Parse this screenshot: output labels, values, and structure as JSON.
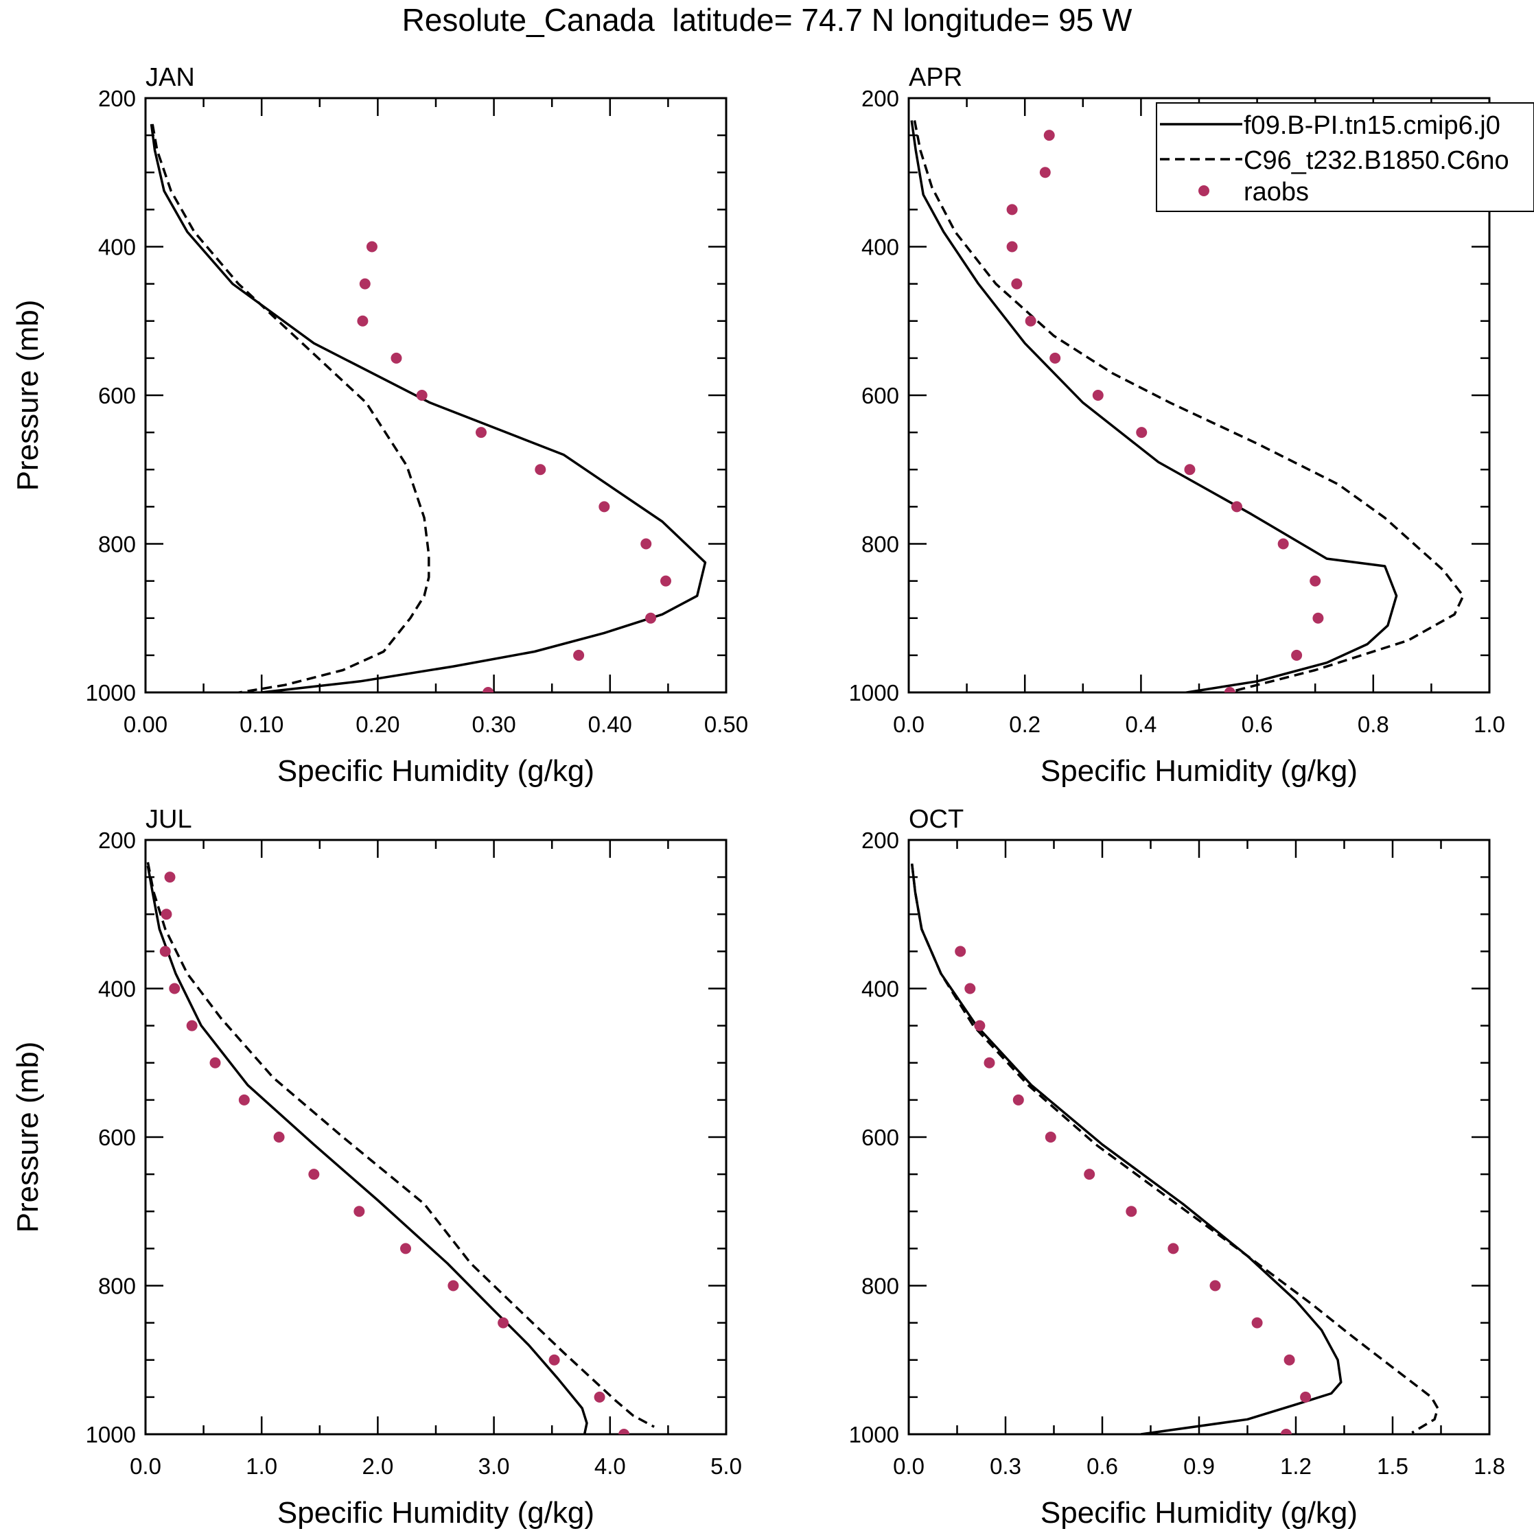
{
  "figure": {
    "title": "Resolute_Canada  latitude= 74.7 N longitude= 95 W"
  },
  "legend": {
    "entries": [
      {
        "label": "f09.B-PI.tn15.cmip6.j0",
        "style": "solid"
      },
      {
        "label": "C96_t232.B1850.C6no",
        "style": "dashed"
      },
      {
        "label": "raobs",
        "style": "marker"
      }
    ],
    "placement": "top-right of APR panel"
  },
  "colors": {
    "raobs": "#b03060",
    "lines": "#000000"
  },
  "chart_data": [
    {
      "type": "line",
      "panel": "JAN",
      "title": "JAN",
      "xlabel": "Specific Humidity (g/kg)",
      "ylabel": "Pressure (mb)",
      "xlim": [
        0,
        0.5
      ],
      "ylim": [
        1000,
        200
      ],
      "xticks": [
        0,
        0.1,
        0.2,
        0.3,
        0.4,
        0.5
      ],
      "xticklabels": [
        "0.00",
        "0.10",
        "0.20",
        "0.30",
        "0.40",
        "0.50"
      ],
      "yticks": [
        200,
        400,
        600,
        800,
        1000
      ],
      "yticklabels": [
        "200",
        "400",
        "600",
        "800",
        "1000"
      ],
      "series": [
        {
          "name": "f09.B-PI.tn15.cmip6.j0",
          "style": "solid",
          "x": [
            0.005,
            0.008,
            0.016,
            0.036,
            0.075,
            0.145,
            0.245,
            0.36,
            0.445,
            0.482,
            0.475,
            0.445,
            0.395,
            0.335,
            0.265,
            0.185,
            0.1
          ],
          "y": [
            235,
            270,
            325,
            380,
            450,
            530,
            610,
            680,
            770,
            825,
            870,
            895,
            920,
            945,
            965,
            985,
            1000
          ]
        },
        {
          "name": "C96_t232.B1850.C6no",
          "style": "dashed",
          "x": [
            0.006,
            0.01,
            0.022,
            0.042,
            0.08,
            0.135,
            0.19,
            0.225,
            0.24,
            0.244,
            0.244,
            0.24,
            0.228,
            0.205,
            0.17,
            0.12,
            0.073
          ],
          "y": [
            235,
            270,
            325,
            380,
            450,
            530,
            610,
            695,
            765,
            815,
            845,
            870,
            900,
            945,
            970,
            990,
            1002
          ]
        },
        {
          "name": "raobs",
          "style": "marker",
          "x": [
            0.195,
            0.189,
            0.187,
            0.216,
            0.238,
            0.289,
            0.34,
            0.395,
            0.431,
            0.448,
            0.435,
            0.373,
            0.295
          ],
          "y": [
            400,
            450,
            500,
            550,
            600,
            650,
            700,
            750,
            800,
            850,
            900,
            950,
            1000
          ]
        }
      ]
    },
    {
      "type": "line",
      "panel": "APR",
      "title": "APR",
      "xlabel": "Specific Humidity (g/kg)",
      "ylabel": "",
      "xlim": [
        0,
        1.0
      ],
      "ylim": [
        1000,
        200
      ],
      "xticks": [
        0,
        0.2,
        0.4,
        0.6,
        0.8,
        1.0
      ],
      "xticklabels": [
        "0.0",
        "0.2",
        "0.4",
        "0.6",
        "0.8",
        "1.0"
      ],
      "yticks": [
        200,
        400,
        600,
        800,
        1000
      ],
      "yticklabels": [
        "200",
        "400",
        "600",
        "800",
        "1000"
      ],
      "series": [
        {
          "name": "f09.B-PI.tn15.cmip6.j0",
          "style": "solid",
          "x": [
            0.005,
            0.012,
            0.025,
            0.06,
            0.12,
            0.2,
            0.3,
            0.43,
            0.59,
            0.72,
            0.82,
            0.84,
            0.825,
            0.79,
            0.72,
            0.6,
            0.43
          ],
          "y": [
            230,
            270,
            330,
            380,
            450,
            530,
            610,
            690,
            760,
            820,
            830,
            870,
            910,
            935,
            960,
            985,
            1006
          ]
        },
        {
          "name": "C96_t232.B1850.C6no",
          "style": "dashed",
          "x": [
            0.01,
            0.02,
            0.04,
            0.08,
            0.15,
            0.25,
            0.35,
            0.45,
            0.6,
            0.74,
            0.82,
            0.92,
            0.955,
            0.94,
            0.86,
            0.7,
            0.54
          ],
          "y": [
            230,
            270,
            320,
            380,
            450,
            520,
            570,
            610,
            665,
            720,
            765,
            835,
            870,
            895,
            930,
            970,
            1002
          ]
        },
        {
          "name": "raobs",
          "style": "marker",
          "x": [
            0.242,
            0.235,
            0.178,
            0.178,
            0.186,
            0.21,
            0.252,
            0.326,
            0.401,
            0.484,
            0.565,
            0.645,
            0.7,
            0.705,
            0.668,
            0.553
          ],
          "y": [
            250,
            300,
            350,
            400,
            450,
            500,
            550,
            600,
            650,
            700,
            750,
            800,
            850,
            900,
            950,
            1000
          ]
        }
      ]
    },
    {
      "type": "line",
      "panel": "JUL",
      "title": "JUL",
      "xlabel": "Specific Humidity (g/kg)",
      "ylabel": "Pressure (mb)",
      "xlim": [
        0,
        5.0
      ],
      "ylim": [
        1000,
        200
      ],
      "xticks": [
        0,
        1,
        2,
        3,
        4,
        5
      ],
      "xticklabels": [
        "0.0",
        "1.0",
        "2.0",
        "3.0",
        "4.0",
        "5.0"
      ],
      "yticks": [
        200,
        400,
        600,
        800,
        1000
      ],
      "yticklabels": [
        "200",
        "400",
        "600",
        "800",
        "1000"
      ],
      "series": [
        {
          "name": "f09.B-PI.tn15.cmip6.j0",
          "style": "solid",
          "x": [
            0.02,
            0.06,
            0.12,
            0.26,
            0.48,
            0.88,
            1.45,
            2.0,
            2.6,
            2.98,
            3.3,
            3.55,
            3.76,
            3.8,
            3.78
          ],
          "y": [
            235,
            270,
            320,
            380,
            450,
            530,
            610,
            685,
            770,
            830,
            880,
            925,
            965,
            985,
            1000
          ]
        },
        {
          "name": "C96_t232.B1850.C6no",
          "style": "dashed",
          "x": [
            0.02,
            0.07,
            0.17,
            0.36,
            0.65,
            1.1,
            1.7,
            2.4,
            2.8,
            3.2,
            3.6,
            4.05,
            4.2,
            4.38
          ],
          "y": [
            230,
            270,
            320,
            380,
            440,
            520,
            600,
            690,
            770,
            830,
            890,
            955,
            975,
            990
          ]
        },
        {
          "name": "raobs",
          "style": "marker",
          "x": [
            0.21,
            0.18,
            0.17,
            0.25,
            0.4,
            0.6,
            0.85,
            1.15,
            1.45,
            1.84,
            2.24,
            2.65,
            3.08,
            3.52,
            3.91,
            4.12
          ],
          "y": [
            250,
            300,
            350,
            400,
            450,
            500,
            550,
            600,
            650,
            700,
            750,
            800,
            850,
            900,
            950,
            1000
          ]
        }
      ]
    },
    {
      "type": "line",
      "panel": "OCT",
      "title": "OCT",
      "xlabel": "Specific Humidity (g/kg)",
      "ylabel": "",
      "xlim": [
        0,
        1.8
      ],
      "ylim": [
        1000,
        200
      ],
      "xticks": [
        0,
        0.3,
        0.6,
        0.9,
        1.2,
        1.5,
        1.8
      ],
      "xticklabels": [
        "0.0",
        "0.3",
        "0.6",
        "0.9",
        "1.2",
        "1.5",
        "1.8"
      ],
      "yticks": [
        200,
        400,
        600,
        800,
        1000
      ],
      "yticklabels": [
        "200",
        "400",
        "600",
        "800",
        "1000"
      ],
      "series": [
        {
          "name": "f09.B-PI.tn15.cmip6.j0",
          "style": "solid",
          "x": [
            0.01,
            0.02,
            0.04,
            0.1,
            0.21,
            0.38,
            0.6,
            0.85,
            1.05,
            1.2,
            1.28,
            1.33,
            1.34,
            1.31,
            1.2,
            1.05,
            0.72
          ],
          "y": [
            232,
            270,
            320,
            380,
            450,
            530,
            610,
            690,
            760,
            820,
            860,
            900,
            930,
            945,
            960,
            980,
            1000
          ]
        },
        {
          "name": "C96_t232.B1850.C6no",
          "style": "dashed",
          "x": [
            0.01,
            0.02,
            0.04,
            0.1,
            0.2,
            0.37,
            0.58,
            0.83,
            1.05,
            1.25,
            1.38,
            1.5,
            1.62,
            1.64,
            1.63,
            1.56
          ],
          "y": [
            232,
            270,
            320,
            380,
            450,
            530,
            610,
            690,
            760,
            825,
            870,
            910,
            950,
            965,
            980,
            998
          ]
        },
        {
          "name": "raobs",
          "style": "marker",
          "x": [
            0.16,
            0.19,
            0.22,
            0.25,
            0.34,
            0.44,
            0.56,
            0.69,
            0.82,
            0.95,
            1.08,
            1.18,
            1.23,
            1.17
          ],
          "y": [
            350,
            400,
            450,
            500,
            550,
            600,
            650,
            700,
            750,
            800,
            850,
            900,
            950,
            1000
          ]
        }
      ]
    }
  ]
}
